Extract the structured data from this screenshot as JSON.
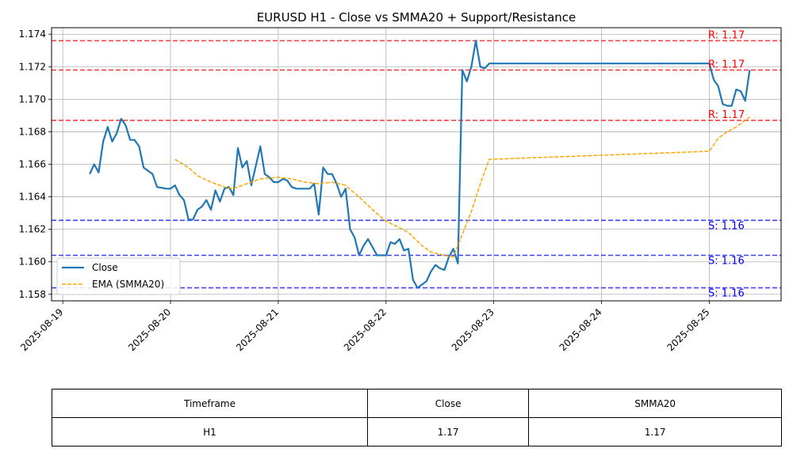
{
  "chart_data": {
    "type": "line",
    "title": "EURUSD H1 - Close vs SMMA20 + Support/Resistance",
    "xlabel": "",
    "ylabel": "",
    "xlim": [
      "2025-08-18T21:30",
      "2025-08-25T16:00"
    ],
    "ylim": [
      1.1576,
      1.1744
    ],
    "x_ticks": [
      "2025-08-19",
      "2025-08-20",
      "2025-08-21",
      "2025-08-22",
      "2025-08-23",
      "2025-08-24",
      "2025-08-25"
    ],
    "y_ticks": [
      "1.158",
      "1.160",
      "1.162",
      "1.164",
      "1.166",
      "1.168",
      "1.170",
      "1.172",
      "1.174"
    ],
    "grid": true,
    "legend_position": "lower-left",
    "series": [
      {
        "name": "Close",
        "style": "solid",
        "color": "#1f77b4",
        "points": [
          [
            "2025-08-19T06:00",
            1.1654
          ],
          [
            "2025-08-19T07:00",
            1.166
          ],
          [
            "2025-08-19T08:00",
            1.1655
          ],
          [
            "2025-08-19T09:00",
            1.1674
          ],
          [
            "2025-08-19T10:00",
            1.1683
          ],
          [
            "2025-08-19T11:00",
            1.1674
          ],
          [
            "2025-08-19T12:00",
            1.1679
          ],
          [
            "2025-08-19T13:00",
            1.1688
          ],
          [
            "2025-08-19T14:00",
            1.1684
          ],
          [
            "2025-08-19T15:00",
            1.1675
          ],
          [
            "2025-08-19T16:00",
            1.1675
          ],
          [
            "2025-08-19T17:00",
            1.1671
          ],
          [
            "2025-08-19T18:00",
            1.1658
          ],
          [
            "2025-08-19T20:00",
            1.1654
          ],
          [
            "2025-08-19T21:00",
            1.1646
          ],
          [
            "2025-08-19T23:00",
            1.1645
          ],
          [
            "2025-08-20T00:00",
            1.1645
          ],
          [
            "2025-08-20T01:00",
            1.1647
          ],
          [
            "2025-08-20T02:00",
            1.1641
          ],
          [
            "2025-08-20T03:00",
            1.1638
          ],
          [
            "2025-08-20T04:00",
            1.1626
          ],
          [
            "2025-08-20T05:00",
            1.1626
          ],
          [
            "2025-08-20T06:00",
            1.1632
          ],
          [
            "2025-08-20T07:00",
            1.1634
          ],
          [
            "2025-08-20T08:00",
            1.1638
          ],
          [
            "2025-08-20T09:00",
            1.1632
          ],
          [
            "2025-08-20T10:00",
            1.1644
          ],
          [
            "2025-08-20T11:00",
            1.1637
          ],
          [
            "2025-08-20T12:00",
            1.1645
          ],
          [
            "2025-08-20T13:00",
            1.1646
          ],
          [
            "2025-08-20T14:00",
            1.1641
          ],
          [
            "2025-08-20T15:00",
            1.167
          ],
          [
            "2025-08-20T16:00",
            1.1658
          ],
          [
            "2025-08-20T17:00",
            1.1662
          ],
          [
            "2025-08-20T18:00",
            1.1647
          ],
          [
            "2025-08-20T19:00",
            1.1659
          ],
          [
            "2025-08-20T20:00",
            1.1671
          ],
          [
            "2025-08-20T21:00",
            1.1654
          ],
          [
            "2025-08-20T22:00",
            1.1652
          ],
          [
            "2025-08-20T23:00",
            1.1649
          ],
          [
            "2025-08-21T00:00",
            1.1649
          ],
          [
            "2025-08-21T01:00",
            1.1651
          ],
          [
            "2025-08-21T02:00",
            1.165
          ],
          [
            "2025-08-21T03:00",
            1.1646
          ],
          [
            "2025-08-21T04:00",
            1.1645
          ],
          [
            "2025-08-21T05:00",
            1.1645
          ],
          [
            "2025-08-21T07:00",
            1.1645
          ],
          [
            "2025-08-21T08:00",
            1.1648
          ],
          [
            "2025-08-21T09:00",
            1.1629
          ],
          [
            "2025-08-21T10:00",
            1.1658
          ],
          [
            "2025-08-21T11:00",
            1.1654
          ],
          [
            "2025-08-21T12:00",
            1.1654
          ],
          [
            "2025-08-21T13:00",
            1.1648
          ],
          [
            "2025-08-21T14:00",
            1.164
          ],
          [
            "2025-08-21T15:00",
            1.1645
          ],
          [
            "2025-08-21T16:00",
            1.162
          ],
          [
            "2025-08-21T17:00",
            1.1615
          ],
          [
            "2025-08-21T18:00",
            1.1604
          ],
          [
            "2025-08-21T19:00",
            1.161
          ],
          [
            "2025-08-21T20:00",
            1.1614
          ],
          [
            "2025-08-21T21:00",
            1.1609
          ],
          [
            "2025-08-21T22:00",
            1.1604
          ],
          [
            "2025-08-21T23:00",
            1.1604
          ],
          [
            "2025-08-22T00:00",
            1.1604
          ],
          [
            "2025-08-22T01:00",
            1.1612
          ],
          [
            "2025-08-22T02:00",
            1.1611
          ],
          [
            "2025-08-22T03:00",
            1.1614
          ],
          [
            "2025-08-22T04:00",
            1.1607
          ],
          [
            "2025-08-22T05:00",
            1.1608
          ],
          [
            "2025-08-22T06:00",
            1.1589
          ],
          [
            "2025-08-22T07:00",
            1.1584
          ],
          [
            "2025-08-22T08:00",
            1.1586
          ],
          [
            "2025-08-22T09:00",
            1.1588
          ],
          [
            "2025-08-22T10:00",
            1.1594
          ],
          [
            "2025-08-22T11:00",
            1.1598
          ],
          [
            "2025-08-22T12:00",
            1.1596
          ],
          [
            "2025-08-22T13:00",
            1.1595
          ],
          [
            "2025-08-22T14:00",
            1.1603
          ],
          [
            "2025-08-22T15:00",
            1.1608
          ],
          [
            "2025-08-22T16:00",
            1.1599
          ],
          [
            "2025-08-22T17:00",
            1.1718
          ],
          [
            "2025-08-22T18:00",
            1.1711
          ],
          [
            "2025-08-22T19:00",
            1.172
          ],
          [
            "2025-08-22T20:00",
            1.1736
          ],
          [
            "2025-08-22T21:00",
            1.172
          ],
          [
            "2025-08-22T22:00",
            1.1719
          ],
          [
            "2025-08-22T23:00",
            1.1722
          ],
          [
            "2025-08-25T00:00",
            1.1722
          ],
          [
            "2025-08-25T01:00",
            1.1712
          ],
          [
            "2025-08-25T02:00",
            1.1708
          ],
          [
            "2025-08-25T03:00",
            1.1697
          ],
          [
            "2025-08-25T04:00",
            1.1696
          ],
          [
            "2025-08-25T05:00",
            1.1696
          ],
          [
            "2025-08-25T06:00",
            1.1706
          ],
          [
            "2025-08-25T07:00",
            1.1705
          ],
          [
            "2025-08-25T08:00",
            1.1699
          ],
          [
            "2025-08-25T09:00",
            1.1718
          ]
        ]
      },
      {
        "name": "EMA (SMMA20)",
        "style": "dashed",
        "color": "#ffa500",
        "points": [
          [
            "2025-08-20T01:00",
            1.1663
          ],
          [
            "2025-08-20T04:00",
            1.1658
          ],
          [
            "2025-08-20T06:00",
            1.1653
          ],
          [
            "2025-08-20T09:00",
            1.1649
          ],
          [
            "2025-08-20T12:00",
            1.1646
          ],
          [
            "2025-08-20T14:00",
            1.1645
          ],
          [
            "2025-08-20T17:00",
            1.1648
          ],
          [
            "2025-08-20T20:00",
            1.1651
          ],
          [
            "2025-08-21T00:00",
            1.1652
          ],
          [
            "2025-08-21T03:00",
            1.1651
          ],
          [
            "2025-08-21T06:00",
            1.1649
          ],
          [
            "2025-08-21T09:00",
            1.1648
          ],
          [
            "2025-08-21T12:00",
            1.1649
          ],
          [
            "2025-08-21T15:00",
            1.1647
          ],
          [
            "2025-08-21T18:00",
            1.164
          ],
          [
            "2025-08-21T21:00",
            1.1632
          ],
          [
            "2025-08-22T00:00",
            1.1625
          ],
          [
            "2025-08-22T03:00",
            1.1621
          ],
          [
            "2025-08-22T05:00",
            1.1618
          ],
          [
            "2025-08-22T08:00",
            1.161
          ],
          [
            "2025-08-22T10:00",
            1.1606
          ],
          [
            "2025-08-22T13:00",
            1.1604
          ],
          [
            "2025-08-22T15:00",
            1.1603
          ],
          [
            "2025-08-22T17:00",
            1.1617
          ],
          [
            "2025-08-22T19:00",
            1.1631
          ],
          [
            "2025-08-22T21:00",
            1.1648
          ],
          [
            "2025-08-22T23:00",
            1.1663
          ],
          [
            "2025-08-25T00:00",
            1.1668
          ],
          [
            "2025-08-25T02:00",
            1.1676
          ],
          [
            "2025-08-25T04:00",
            1.168
          ],
          [
            "2025-08-25T06:00",
            1.1683
          ],
          [
            "2025-08-25T08:00",
            1.1687
          ],
          [
            "2025-08-25T09:00",
            1.1689
          ]
        ]
      }
    ],
    "levels": [
      {
        "kind": "resistance",
        "value": 1.1736,
        "label": "R: 1.17",
        "color": "#ff0000"
      },
      {
        "kind": "resistance",
        "value": 1.1718,
        "label": "R: 1.17",
        "color": "#ff0000"
      },
      {
        "kind": "resistance",
        "value": 1.1687,
        "label": "R: 1.17",
        "color": "#ff0000"
      },
      {
        "kind": "support",
        "value": 1.16255,
        "label": "S: 1.16",
        "color": "#0000ff"
      },
      {
        "kind": "support",
        "value": 1.1604,
        "label": "S: 1.16",
        "color": "#0000ff"
      },
      {
        "kind": "support",
        "value": 1.1584,
        "label": "S: 1.16",
        "color": "#0000ff"
      }
    ]
  },
  "table": {
    "headers": [
      "Timeframe",
      "Close",
      "SMMA20"
    ],
    "rows": [
      [
        "H1",
        "1.17",
        "1.17"
      ]
    ]
  }
}
